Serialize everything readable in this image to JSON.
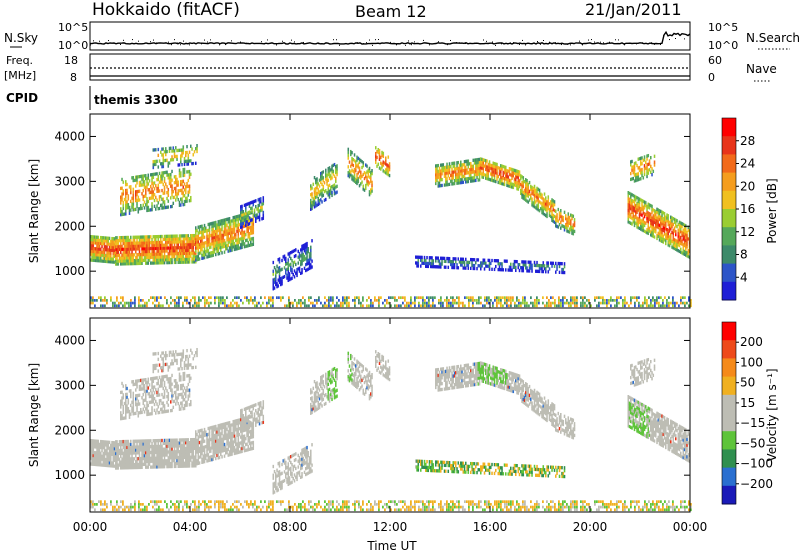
{
  "header": {
    "station": "Hokkaido (fitACF)",
    "beam": "Beam 12",
    "date": "21/Jan/2011"
  },
  "sky_panel": {
    "left_label": "N.Sky",
    "right_label": "N.Search",
    "y_ticks": [
      "10^5",
      "10^0"
    ]
  },
  "freq_panel": {
    "left_label_1": "Freq.",
    "left_label_2": "[MHz]",
    "left_ticks": [
      "18",
      "8"
    ],
    "right_label": "Nave",
    "right_ticks": [
      "60",
      "0"
    ]
  },
  "cpid_panel": {
    "label": "CPID",
    "mode": "themis 3300"
  },
  "colors": {
    "power_scale": [
      "#1f1fd6",
      "#2d55c8",
      "#3d8a6a",
      "#55a85a",
      "#9acd32",
      "#f0c020",
      "#f59d1e",
      "#f26a1a",
      "#e8341a",
      "#ff0000"
    ],
    "velocity_scale": [
      "#1a1ab8",
      "#2a6fd0",
      "#2f8f4f",
      "#5ec43a",
      "#bdbdb4",
      "#bdbdb4",
      "#f0b020",
      "#f58a1a",
      "#ee4a1a",
      "#ff0000"
    ]
  },
  "chart_data": [
    {
      "type": "heatmap",
      "name": "power-panel",
      "ylabel": "Slant Range [km]",
      "ylim": [
        180,
        4500
      ],
      "yticks": [
        1000,
        2000,
        3000,
        4000
      ],
      "xlim": [
        0,
        24
      ],
      "colorbar_label": "Power [dB]",
      "colorbar_ticks": [
        "28",
        "24",
        "20",
        "16",
        "12",
        "8",
        "4"
      ],
      "colorbar_range": [
        0,
        30
      ]
    },
    {
      "type": "heatmap",
      "name": "velocity-panel",
      "ylabel": "Slant Range [km]",
      "ylim": [
        180,
        4500
      ],
      "yticks": [
        1000,
        2000,
        3000,
        4000
      ],
      "xlim": [
        0,
        24
      ],
      "xticks": [
        "00:00",
        "04:00",
        "08:00",
        "12:00",
        "16:00",
        "20:00",
        "00:00"
      ],
      "xlabel": "Time UT",
      "colorbar_label": "Velocity [m s⁻¹]",
      "colorbar_ticks": [
        "200",
        "100",
        "50",
        "15",
        "−15",
        "−50",
        "−100",
        "−200"
      ],
      "colorbar_range": [
        -250,
        250
      ]
    }
  ]
}
